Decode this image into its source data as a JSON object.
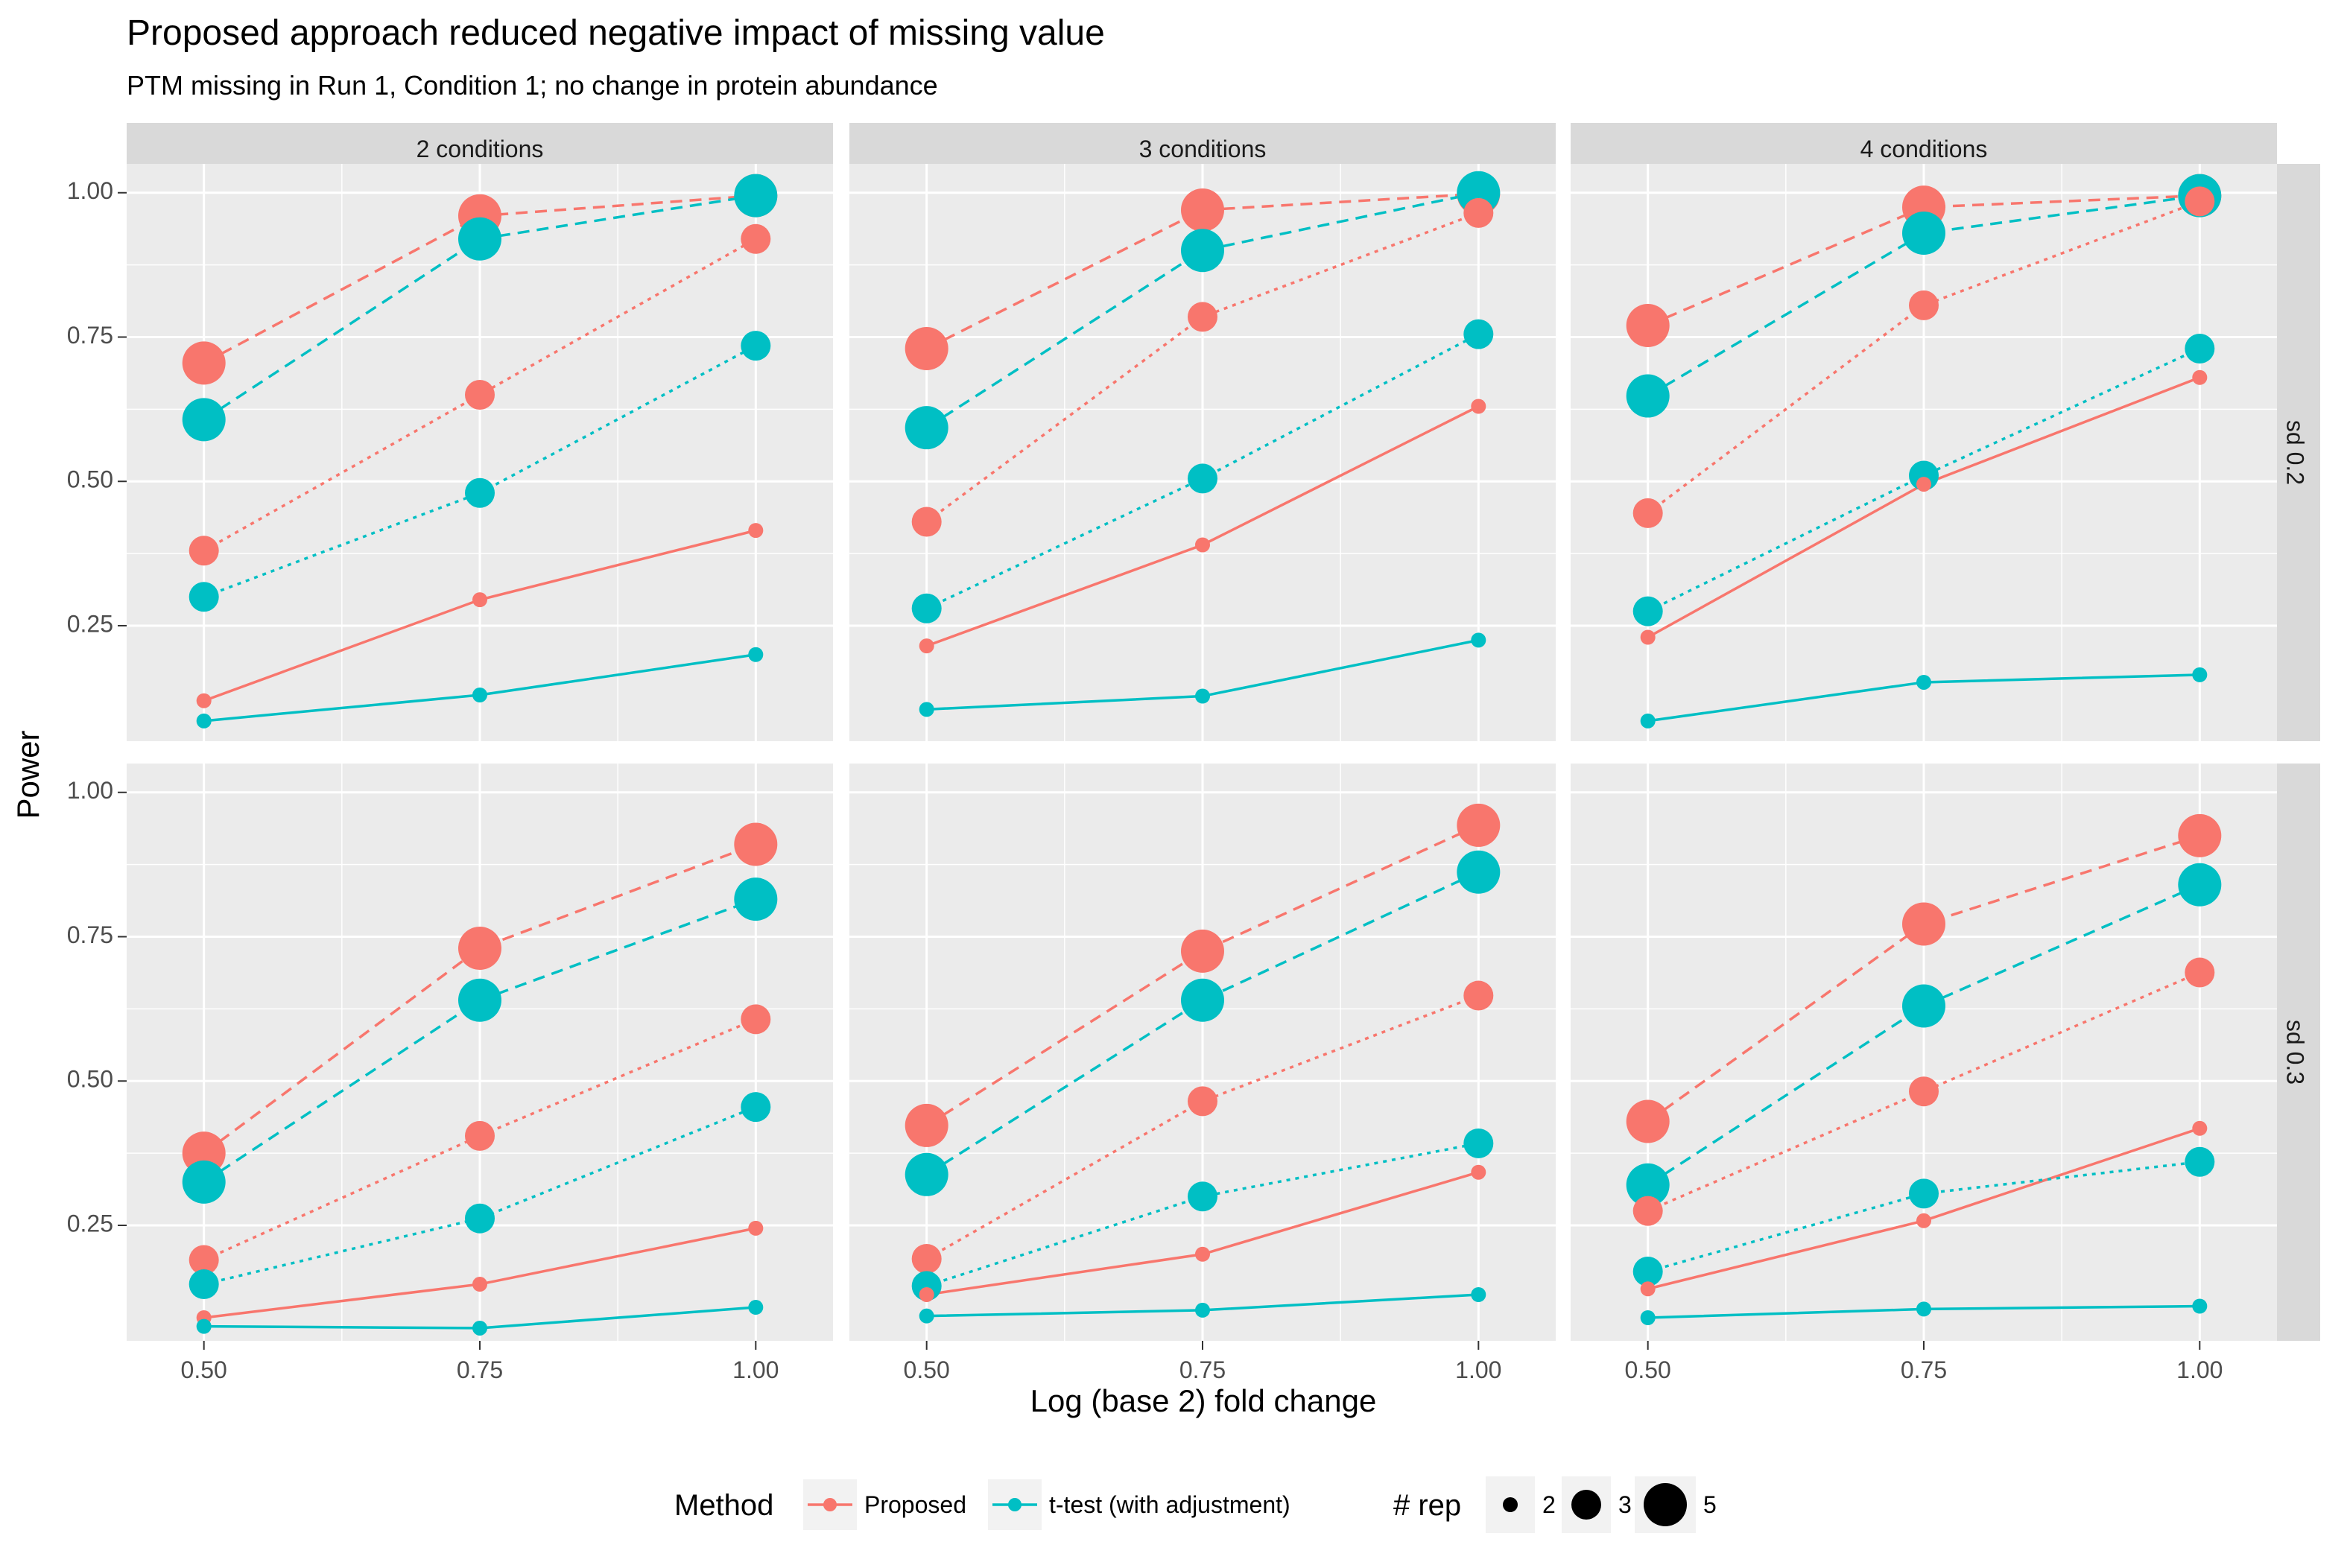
{
  "title": "Proposed approach reduced negative impact of missing value",
  "subtitle": "PTM missing in Run 1, Condition 1; no change in protein abundance",
  "colors": {
    "Proposed": "#F8766D",
    "t-test (with adjustment)": "#00BFC4"
  },
  "chart_data": {
    "type": "line",
    "title": "Proposed approach reduced negative impact of missing value",
    "subtitle": "PTM missing in Run 1, Condition 1; no change in protein abundance",
    "xlabel": "Log (base 2) fold change",
    "ylabel": "Power",
    "x": [
      0.5,
      0.75,
      1.0
    ],
    "x_ticks": [
      "0.50",
      "0.75",
      "1.00"
    ],
    "y_ticks": [
      "0.25",
      "0.50",
      "0.75",
      "1.00"
    ],
    "ylim": [
      0.05,
      1.05
    ],
    "grid": true,
    "column_facets": [
      "2 conditions",
      "3 conditions",
      "4 conditions"
    ],
    "row_facets": [
      "sd 0.2",
      "sd 0.3"
    ],
    "legend": {
      "position": "bottom",
      "method_title": "Method",
      "methods": [
        "Proposed",
        "t-test (with adjustment)"
      ],
      "rep_title": "# rep",
      "reps": [
        "2",
        "3",
        "5"
      ]
    },
    "linetype_by_rep": {
      "2": "solid",
      "3": "dotted",
      "5": "dashed"
    },
    "panels": [
      {
        "col": "2 conditions",
        "row": "sd 0.2",
        "series": [
          {
            "method": "Proposed",
            "rep": "2",
            "values": [
              0.12,
              0.295,
              0.415
            ]
          },
          {
            "method": "Proposed",
            "rep": "3",
            "values": [
              0.38,
              0.65,
              0.92
            ]
          },
          {
            "method": "Proposed",
            "rep": "5",
            "values": [
              0.705,
              0.96,
              0.995
            ]
          },
          {
            "method": "t-test (with adjustment)",
            "rep": "2",
            "values": [
              0.085,
              0.13,
              0.2
            ]
          },
          {
            "method": "t-test (with adjustment)",
            "rep": "3",
            "values": [
              0.3,
              0.48,
              0.735
            ]
          },
          {
            "method": "t-test (with adjustment)",
            "rep": "5",
            "values": [
              0.607,
              0.92,
              0.995
            ]
          }
        ]
      },
      {
        "col": "3 conditions",
        "row": "sd 0.2",
        "series": [
          {
            "method": "Proposed",
            "rep": "2",
            "values": [
              0.215,
              0.39,
              0.63
            ]
          },
          {
            "method": "Proposed",
            "rep": "3",
            "values": [
              0.43,
              0.785,
              0.965
            ]
          },
          {
            "method": "Proposed",
            "rep": "5",
            "values": [
              0.73,
              0.97,
              0.998
            ]
          },
          {
            "method": "t-test (with adjustment)",
            "rep": "2",
            "values": [
              0.105,
              0.128,
              0.225
            ]
          },
          {
            "method": "t-test (with adjustment)",
            "rep": "3",
            "values": [
              0.28,
              0.505,
              0.755
            ]
          },
          {
            "method": "t-test (with adjustment)",
            "rep": "5",
            "values": [
              0.593,
              0.9,
              1.0
            ]
          }
        ]
      },
      {
        "col": "4 conditions",
        "row": "sd 0.2",
        "series": [
          {
            "method": "Proposed",
            "rep": "2",
            "values": [
              0.23,
              0.495,
              0.68
            ]
          },
          {
            "method": "Proposed",
            "rep": "3",
            "values": [
              0.445,
              0.805,
              0.985
            ]
          },
          {
            "method": "Proposed",
            "rep": "5",
            "values": [
              0.77,
              0.975,
              0.995
            ]
          },
          {
            "method": "t-test (with adjustment)",
            "rep": "2",
            "values": [
              0.085,
              0.152,
              0.165
            ]
          },
          {
            "method": "t-test (with adjustment)",
            "rep": "3",
            "values": [
              0.275,
              0.51,
              0.73
            ]
          },
          {
            "method": "t-test (with adjustment)",
            "rep": "5",
            "values": [
              0.648,
              0.93,
              0.995
            ]
          }
        ]
      },
      {
        "col": "2 conditions",
        "row": "sd 0.3",
        "series": [
          {
            "method": "Proposed",
            "rep": "2",
            "values": [
              0.09,
              0.148,
              0.245
            ]
          },
          {
            "method": "Proposed",
            "rep": "3",
            "values": [
              0.19,
              0.405,
              0.607
            ]
          },
          {
            "method": "Proposed",
            "rep": "5",
            "values": [
              0.375,
              0.73,
              0.91
            ]
          },
          {
            "method": "t-test (with adjustment)",
            "rep": "2",
            "values": [
              0.075,
              0.072,
              0.108
            ]
          },
          {
            "method": "t-test (with adjustment)",
            "rep": "3",
            "values": [
              0.148,
              0.262,
              0.455
            ]
          },
          {
            "method": "t-test (with adjustment)",
            "rep": "5",
            "values": [
              0.325,
              0.64,
              0.815
            ]
          }
        ]
      },
      {
        "col": "3 conditions",
        "row": "sd 0.3",
        "series": [
          {
            "method": "Proposed",
            "rep": "2",
            "values": [
              0.13,
              0.2,
              0.342
            ]
          },
          {
            "method": "Proposed",
            "rep": "3",
            "values": [
              0.192,
              0.465,
              0.648
            ]
          },
          {
            "method": "Proposed",
            "rep": "5",
            "values": [
              0.423,
              0.725,
              0.943
            ]
          },
          {
            "method": "t-test (with adjustment)",
            "rep": "2",
            "values": [
              0.093,
              0.103,
              0.13
            ]
          },
          {
            "method": "t-test (with adjustment)",
            "rep": "3",
            "values": [
              0.145,
              0.3,
              0.392
            ]
          },
          {
            "method": "t-test (with adjustment)",
            "rep": "5",
            "values": [
              0.338,
              0.64,
              0.862
            ]
          }
        ]
      },
      {
        "col": "4 conditions",
        "row": "sd 0.3",
        "series": [
          {
            "method": "Proposed",
            "rep": "2",
            "values": [
              0.14,
              0.258,
              0.418
            ]
          },
          {
            "method": "Proposed",
            "rep": "3",
            "values": [
              0.275,
              0.482,
              0.688
            ]
          },
          {
            "method": "Proposed",
            "rep": "5",
            "values": [
              0.43,
              0.772,
              0.925
            ]
          },
          {
            "method": "t-test (with adjustment)",
            "rep": "2",
            "values": [
              0.09,
              0.105,
              0.11
            ]
          },
          {
            "method": "t-test (with adjustment)",
            "rep": "3",
            "values": [
              0.17,
              0.305,
              0.36
            ]
          },
          {
            "method": "t-test (with adjustment)",
            "rep": "5",
            "values": [
              0.32,
              0.63,
              0.84
            ]
          }
        ]
      }
    ]
  }
}
